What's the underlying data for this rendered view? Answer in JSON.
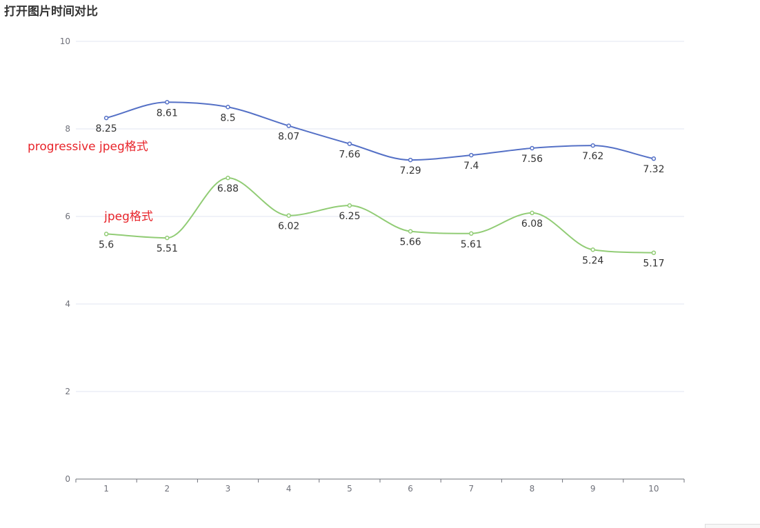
{
  "chart_data": {
    "type": "line",
    "title": "打开图片时间对比",
    "categories": [
      "1",
      "2",
      "3",
      "4",
      "5",
      "6",
      "7",
      "8",
      "9",
      "10"
    ],
    "ylim": [
      0,
      10
    ],
    "yticks": [
      0,
      2,
      4,
      6,
      8,
      10
    ],
    "grid": true,
    "smooth": true,
    "series": [
      {
        "values": [
          8.25,
          8.61,
          8.5,
          8.07,
          7.66,
          7.29,
          7.4,
          7.56,
          7.62,
          7.32
        ],
        "color": "#5470c6"
      },
      {
        "values": [
          5.6,
          5.51,
          6.88,
          6.02,
          6.25,
          5.66,
          5.61,
          6.08,
          5.24,
          5.17
        ],
        "color": "#91cc75"
      }
    ],
    "annotations": [
      {
        "text": "progressive jpeg格式",
        "color": "#e8242a",
        "near_series": 0
      },
      {
        "text": "jpeg格式",
        "color": "#e8242a",
        "near_series": 1
      }
    ]
  }
}
